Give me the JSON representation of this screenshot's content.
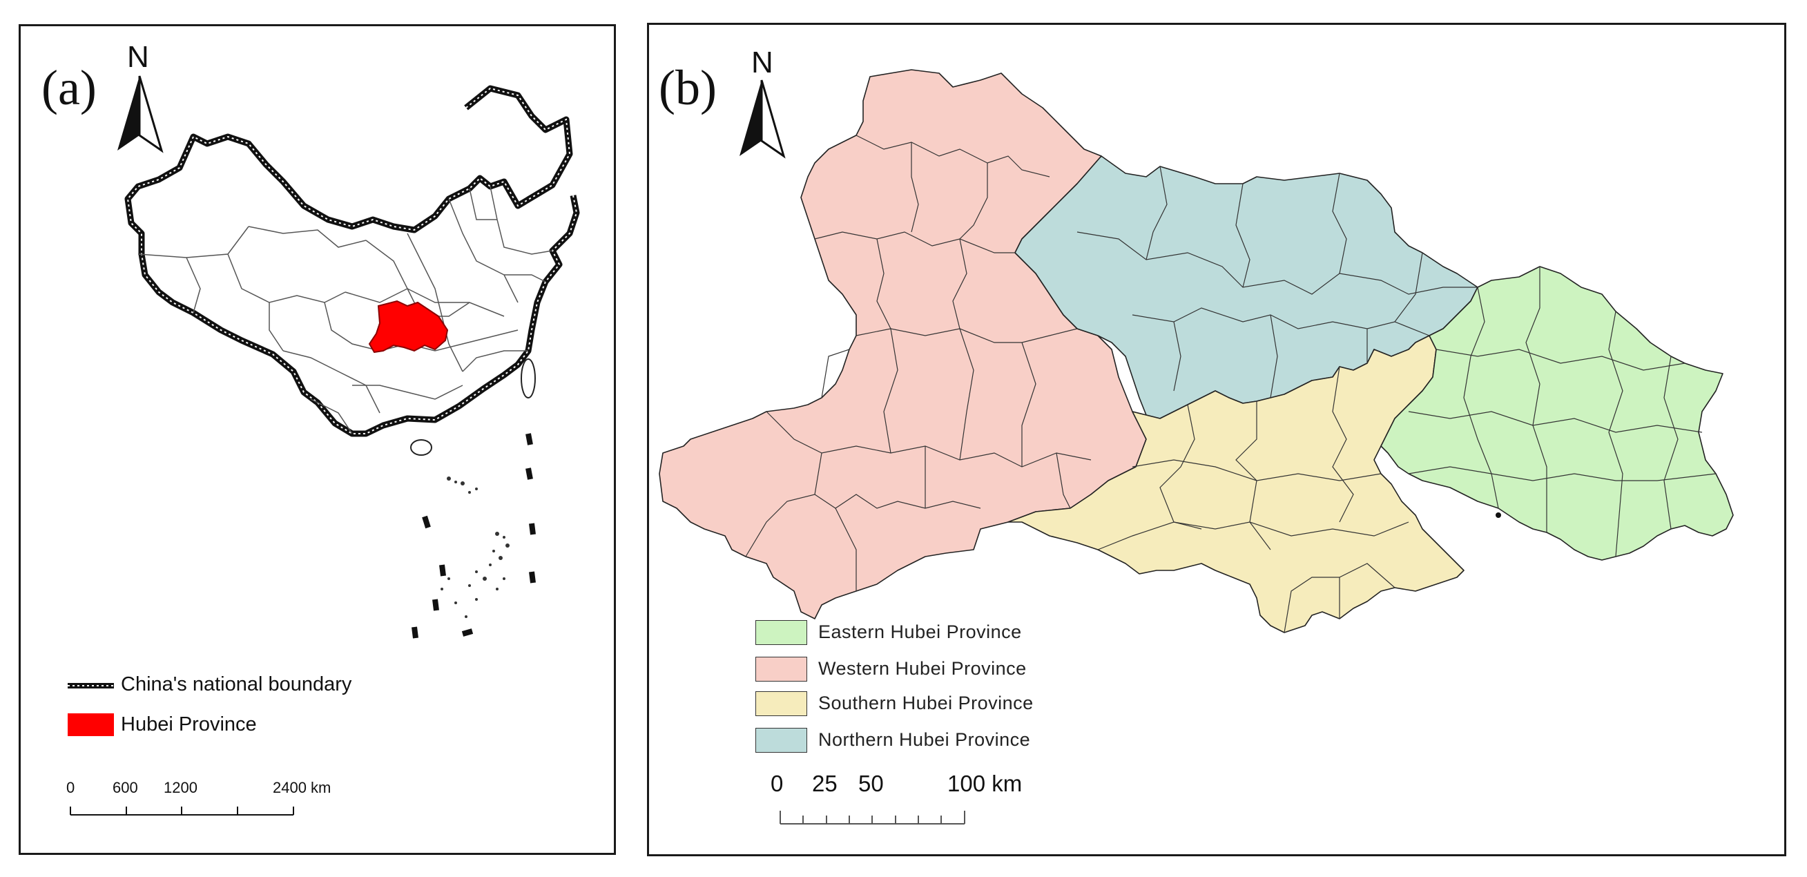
{
  "panel_a": {
    "label": "(a)",
    "north": "N",
    "legend": {
      "boundary": "China's national boundary",
      "hubei": "Hubei Province"
    },
    "scale": {
      "ticks": [
        "0",
        "600",
        "1200",
        "2400 km"
      ]
    },
    "colors": {
      "hubei": "#ff0000",
      "boundary": "#111111"
    }
  },
  "panel_b": {
    "label": "(b)",
    "north": "N",
    "legend": [
      {
        "label": "Eastern Hubei Province",
        "color": "#cdf3c0"
      },
      {
        "label": "Western Hubei Province",
        "color": "#f8cfc7"
      },
      {
        "label": "Southern Hubei Province",
        "color": "#f6ecbc"
      },
      {
        "label": "Northern Hubei Province",
        "color": "#bddcdb"
      }
    ],
    "scale": {
      "ticks": [
        "0",
        "25",
        "50",
        "100 km"
      ]
    }
  }
}
